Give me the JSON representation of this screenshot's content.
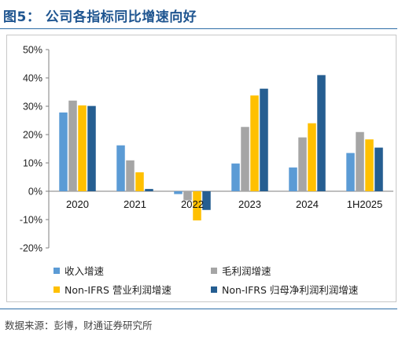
{
  "figure": {
    "label": "图5：",
    "title": "公司各指标同比增速向好",
    "source": "数据来源：彭博，财通证券研究所"
  },
  "colors": {
    "title": "#1f5590",
    "rule": "#2f6fa8",
    "series": [
      "#5b9bd5",
      "#a5a5a5",
      "#ffc000",
      "#255e91"
    ]
  },
  "chart_data": {
    "type": "bar",
    "categories": [
      "2020",
      "2021",
      "2022",
      "2023",
      "2024",
      "1H2025"
    ],
    "series": [
      {
        "name": "收入增速",
        "values": [
          27.8,
          16.2,
          -1.0,
          9.8,
          8.4,
          13.5
        ]
      },
      {
        "name": "毛利润增速",
        "values": [
          32.0,
          10.9,
          -3.2,
          22.7,
          19.0,
          20.9
        ]
      },
      {
        "name": "Non-IFRS 营业利润增速",
        "values": [
          30.3,
          6.7,
          -10.3,
          33.8,
          24.0,
          18.3
        ]
      },
      {
        "name": "Non-IFRS 归母净利润利润增速",
        "values": [
          30.1,
          0.8,
          -6.6,
          36.2,
          41.0,
          15.4
        ]
      }
    ],
    "ylim": [
      -20,
      50
    ],
    "yticks": [
      "50%",
      "40%",
      "30%",
      "20%",
      "10%",
      "0%",
      "-10%",
      "-20%"
    ],
    "ytick_values": [
      50,
      40,
      30,
      20,
      10,
      0,
      -10,
      -20
    ],
    "grid": false,
    "legend_position": "bottom"
  }
}
